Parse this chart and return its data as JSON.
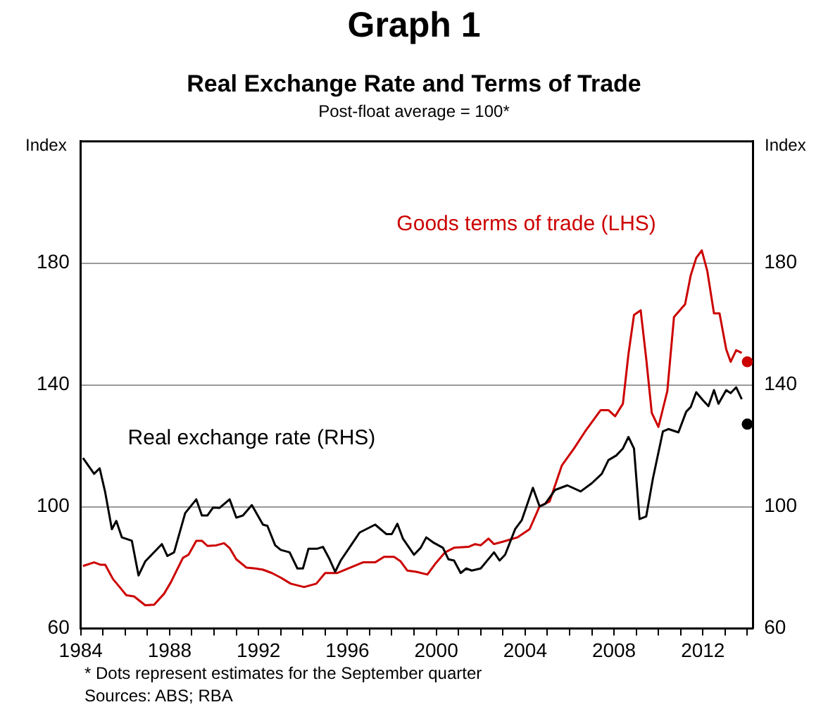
{
  "chart_data": {
    "type": "line",
    "title": "Graph 1",
    "subtitle": "Real Exchange Rate and Terms of Trade",
    "ylabel": "Index",
    "y2label": "Index",
    "annotations": [
      "Post-float average = 100*",
      "* Dots represent estimates for the September quarter",
      "Sources: ABS; RBA"
    ],
    "xlim": [
      1984,
      2014.25
    ],
    "xticks": [
      1984,
      {
        "value": 1985,
        "label": null
      },
      {
        "value": 1986,
        "label": null
      },
      {
        "value": 1987,
        "label": null
      },
      1988,
      {
        "value": 1989,
        "label": null
      },
      {
        "value": 1990,
        "label": null
      },
      {
        "value": 1991,
        "label": null
      },
      1992,
      {
        "value": 1993,
        "label": null
      },
      {
        "value": 1994,
        "label": null
      },
      {
        "value": 1995,
        "label": null
      },
      1996,
      {
        "value": 1997,
        "label": null
      },
      {
        "value": 1998,
        "label": null
      },
      {
        "value": 1999,
        "label": null
      },
      2000,
      {
        "value": 2001,
        "label": null
      },
      {
        "value": 2002,
        "label": null
      },
      {
        "value": 2003,
        "label": null
      },
      2004,
      {
        "value": 2005,
        "label": null
      },
      {
        "value": 2006,
        "label": null
      },
      {
        "value": 2007,
        "label": null
      },
      2008,
      {
        "value": 2009,
        "label": null
      },
      {
        "value": 2010,
        "label": null
      },
      {
        "value": 2011,
        "label": null
      },
      2012,
      {
        "value": 2013,
        "label": null
      },
      {
        "value": 2014,
        "label": null
      }
    ],
    "ylim": [
      60,
      220
    ],
    "yticks": [
      60,
      100,
      140,
      180
    ],
    "y2lim": [
      60,
      220
    ],
    "y2ticks": [
      60,
      100,
      140,
      180
    ],
    "grid": "y",
    "legend": false,
    "marker": "none",
    "line_style": "solid",
    "series": [
      {
        "name": "Goods terms of trade (LHS)",
        "type": "line",
        "axis": "y",
        "color": "#cc0000",
        "x": [
          1984.1,
          1984.6,
          1984.9,
          1985.1,
          1985.45,
          1985.75,
          1986.05,
          1986.4,
          1986.9,
          1987.3,
          1987.75,
          1988.05,
          1988.6,
          1988.85,
          1989.2,
          1989.45,
          1989.7,
          1990.1,
          1990.45,
          1990.7,
          1991.0,
          1991.45,
          1991.85,
          1992.2,
          1992.6,
          1993.0,
          1993.45,
          1994.05,
          1994.6,
          1995.0,
          1995.55,
          1996.2,
          1996.7,
          1997.25,
          1997.65,
          1998.1,
          1998.4,
          1998.7,
          1999.1,
          1999.6,
          1999.95,
          2000.4,
          2000.8,
          2001.45,
          2001.75,
          2002.0,
          2002.35,
          2002.6,
          2003.0,
          2003.65,
          2004.2,
          2004.65,
          2005.1,
          2005.65,
          2006.2,
          2006.7,
          2007.4,
          2007.75,
          2008.05,
          2008.4,
          2008.65,
          2008.9,
          2009.2,
          2009.45,
          2009.7,
          2010.0,
          2010.4,
          2010.7,
          2011.2,
          2011.45,
          2011.7,
          2011.95,
          2012.2,
          2012.5,
          2012.75,
          2013.05,
          2013.25,
          2013.5,
          2013.75
        ],
        "values": [
          80.5,
          81.7,
          80.9,
          80.9,
          76.2,
          73.6,
          70.9,
          70.5,
          67.6,
          67.8,
          71.4,
          75.1,
          83.2,
          84.2,
          88.8,
          88.8,
          87.1,
          87.3,
          88,
          86.4,
          82.7,
          80,
          79.7,
          79.3,
          78.2,
          76.7,
          74.7,
          73.6,
          74.7,
          78.2,
          78.2,
          80.2,
          81.7,
          81.7,
          83.5,
          83.5,
          82,
          79,
          78.6,
          77.7,
          81.2,
          85,
          86.5,
          86.8,
          87.7,
          87.3,
          89.5,
          87.7,
          88.5,
          89.9,
          92.6,
          100.1,
          101.7,
          113.5,
          119.1,
          124.7,
          131.7,
          131.7,
          129.7,
          133.8,
          150.1,
          163,
          164.5,
          148.6,
          130.8,
          126.2,
          138,
          162.3,
          166.5,
          175.9,
          181.7,
          184.2,
          177.4,
          163.5,
          163.5,
          151.7,
          147.6,
          151.4,
          150.5
        ]
      },
      {
        "name": "Real exchange rate (RHS)",
        "type": "line",
        "axis": "y2",
        "color": "#000000",
        "x": [
          1984.1,
          1984.6,
          1984.85,
          1985.1,
          1985.4,
          1985.6,
          1985.85,
          1986.3,
          1986.6,
          1986.9,
          1987.65,
          1987.9,
          1988.2,
          1988.7,
          1989.2,
          1989.45,
          1989.7,
          1989.95,
          1990.25,
          1990.7,
          1991.0,
          1991.3,
          1991.7,
          1992.2,
          1992.4,
          1992.75,
          1993.0,
          1993.4,
          1993.75,
          1994.0,
          1994.25,
          1994.65,
          1994.9,
          1995.2,
          1995.45,
          1995.7,
          1996.2,
          1996.55,
          1997.25,
          1997.75,
          1998.0,
          1998.25,
          1998.5,
          1999.0,
          1999.3,
          1999.55,
          1999.85,
          2000.3,
          2000.55,
          2000.8,
          2001.1,
          2001.35,
          2001.6,
          2002.0,
          2002.6,
          2002.85,
          2003.1,
          2003.55,
          2003.85,
          2004.35,
          2004.65,
          2004.9,
          2005.35,
          2005.9,
          2006.5,
          2007.0,
          2007.45,
          2007.75,
          2008.1,
          2008.4,
          2008.65,
          2008.9,
          2009.15,
          2009.45,
          2009.75,
          2010.2,
          2010.45,
          2010.9,
          2011.25,
          2011.45,
          2011.7,
          2012.0,
          2012.25,
          2012.5,
          2012.7,
          2013.05,
          2013.25,
          2013.5,
          2013.75
        ],
        "values": [
          116,
          110.8,
          112.6,
          104.7,
          92.6,
          95.3,
          89.9,
          88.8,
          77.4,
          82,
          87.7,
          83.8,
          85,
          97.9,
          102.4,
          97.1,
          97.1,
          99.7,
          99.6,
          102.4,
          96.4,
          97.1,
          100.5,
          94.1,
          93.7,
          87.3,
          85.8,
          85,
          79.7,
          79.7,
          86.2,
          86.2,
          86.8,
          82.7,
          78.6,
          82.3,
          87.7,
          91.5,
          94.1,
          91,
          91,
          94.4,
          89.5,
          84.2,
          86.5,
          89.9,
          88.3,
          86.5,
          82.7,
          82.3,
          78.2,
          79.7,
          79,
          79.7,
          85,
          82.3,
          84.2,
          92.6,
          95.6,
          106.2,
          100.1,
          100.9,
          105.5,
          107,
          105,
          107.7,
          110.8,
          115.3,
          116.8,
          119.1,
          122.9,
          119.1,
          95.9,
          96.8,
          109.2,
          124.7,
          125.5,
          124.4,
          131.2,
          132.7,
          137.6,
          135,
          133,
          138.3,
          133.8,
          138.3,
          137.3,
          139.2,
          135.3
        ]
      },
      {
        "type": "scatter",
        "axis": "y",
        "color": "#cc0000",
        "marker": "circle",
        "x": [
          2014.0
        ],
        "values": [
          147.6
        ]
      },
      {
        "type": "scatter",
        "axis": "y2",
        "color": "#000000",
        "marker": "circle",
        "x": [
          2014.0
        ],
        "values": [
          127.1
        ]
      }
    ]
  }
}
